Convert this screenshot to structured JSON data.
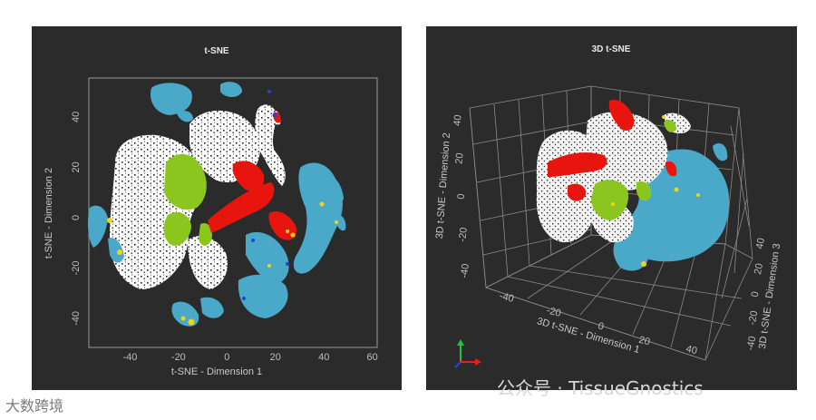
{
  "chart_data": [
    {
      "type": "scatter",
      "title": "t-SNE",
      "xlabel": "t-SNE - Dimension 1",
      "ylabel": "t-SNE - Dimension 2",
      "xlim": [
        -57,
        62
      ],
      "ylim": [
        -53,
        54
      ],
      "xticks": [
        "-40",
        "-20",
        "0",
        "20",
        "40",
        "60"
      ],
      "yticks": [
        "40",
        "20",
        "0",
        "-20",
        "-40"
      ],
      "series_colors": {
        "white": "#ffffff",
        "light-blue": "#4aa8c8",
        "red": "#e8150e",
        "green": "#8ac61e",
        "yellow": "#f2d21b",
        "blue": "#1e44e0"
      }
    },
    {
      "type": "scatter",
      "title": "3D t-SNE",
      "xlabel": "3D t-SNE - Dimension 1",
      "ylabel": "3D t-SNE - Dimension 2",
      "zlabel": "3D t-SNE - Dimension 3",
      "xticks": [
        "-40",
        "-20",
        "0",
        "20",
        "40"
      ],
      "yticks": [
        "40",
        "20",
        "0",
        "-20",
        "-40"
      ],
      "zticks": [
        "40",
        "20",
        "0",
        "-20",
        "-40"
      ],
      "series_colors": {
        "white": "#ffffff",
        "light-blue": "#4aa8c8",
        "red": "#e8150e",
        "green": "#8ac61e",
        "yellow": "#f2d21b"
      }
    }
  ],
  "watermarks": {
    "left": "大数跨境",
    "right": "公众号 · TissueGnostics"
  }
}
